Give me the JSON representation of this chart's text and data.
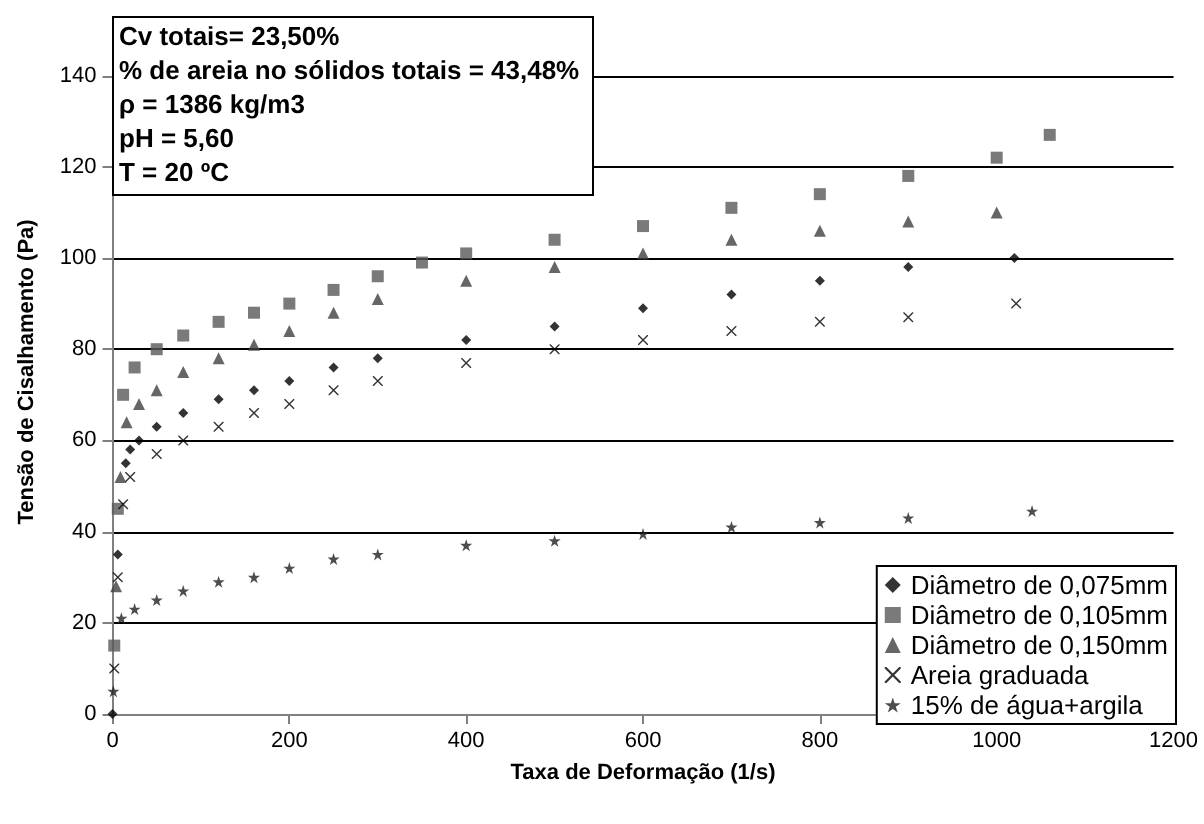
{
  "chart_data": {
    "type": "scatter",
    "xlabel": "Taxa de Deformação (1/s)",
    "ylabel": "Tensão de Cisalhamento (Pa)",
    "annotations": [
      "Cv totais= 23,50%",
      "% de areia no sólidos totais = 43,48%",
      "ρ = 1386 kg/m3",
      "pH = 5,60",
      "T = 20 ºC"
    ],
    "xlim": [
      0,
      1200
    ],
    "xticks": [
      0,
      200,
      400,
      600,
      800,
      1000,
      1200
    ],
    "ylim": [
      0,
      150
    ],
    "yticks": [
      0,
      20,
      40,
      60,
      80,
      100,
      120,
      140
    ],
    "grid": "y",
    "legend": "bottom right",
    "series": [
      {
        "name": "Diâmetro de 0,075mm",
        "color": "#000000",
        "marker": "diamond",
        "x": [
          0,
          6,
          15,
          20,
          30,
          50,
          80,
          120,
          160,
          200,
          250,
          300,
          400,
          500,
          600,
          700,
          800,
          900,
          1020
        ],
        "values": [
          0,
          35,
          55,
          58,
          60,
          63,
          66,
          69,
          71,
          73,
          76,
          78,
          82,
          85,
          89,
          92,
          95,
          98,
          100
        ]
      },
      {
        "name": "Diâmetro de 0,105mm",
        "color": "#595959",
        "marker": "square",
        "x": [
          2,
          6,
          12,
          25,
          50,
          80,
          120,
          160,
          200,
          250,
          300,
          350,
          400,
          500,
          600,
          700,
          800,
          900,
          1000,
          1060
        ],
        "values": [
          15,
          45,
          70,
          76,
          80,
          83,
          86,
          88,
          90,
          93,
          96,
          99,
          101,
          104,
          107,
          111,
          114,
          118,
          122,
          127
        ]
      },
      {
        "name": "Diâmetro de 0,150mm",
        "color": "#404040",
        "marker": "triangle",
        "x": [
          4,
          9,
          16,
          30,
          50,
          80,
          120,
          160,
          200,
          250,
          300,
          400,
          500,
          600,
          700,
          800,
          900,
          1000
        ],
        "values": [
          28,
          52,
          64,
          68,
          71,
          75,
          78,
          81,
          84,
          88,
          91,
          95,
          98,
          101,
          104,
          106,
          108,
          110
        ]
      },
      {
        "name": "Areia graduada",
        "color": "#000000",
        "marker": "cross",
        "x": [
          2,
          6,
          12,
          20,
          50,
          80,
          120,
          160,
          200,
          250,
          300,
          400,
          500,
          600,
          700,
          800,
          900,
          1022
        ],
        "values": [
          10,
          30,
          46,
          52,
          57,
          60,
          63,
          66,
          68,
          71,
          73,
          77,
          80,
          82,
          84,
          86,
          87,
          90
        ]
      },
      {
        "name": "15% de água+argila",
        "color": "#202020",
        "marker": "star",
        "x": [
          1,
          10,
          25,
          50,
          80,
          120,
          160,
          200,
          250,
          300,
          400,
          500,
          600,
          700,
          800,
          900,
          1040
        ],
        "values": [
          5,
          21,
          23,
          25,
          27,
          29,
          30,
          32,
          34,
          35,
          37,
          38,
          39.5,
          41,
          42,
          43,
          44.5
        ]
      }
    ]
  }
}
